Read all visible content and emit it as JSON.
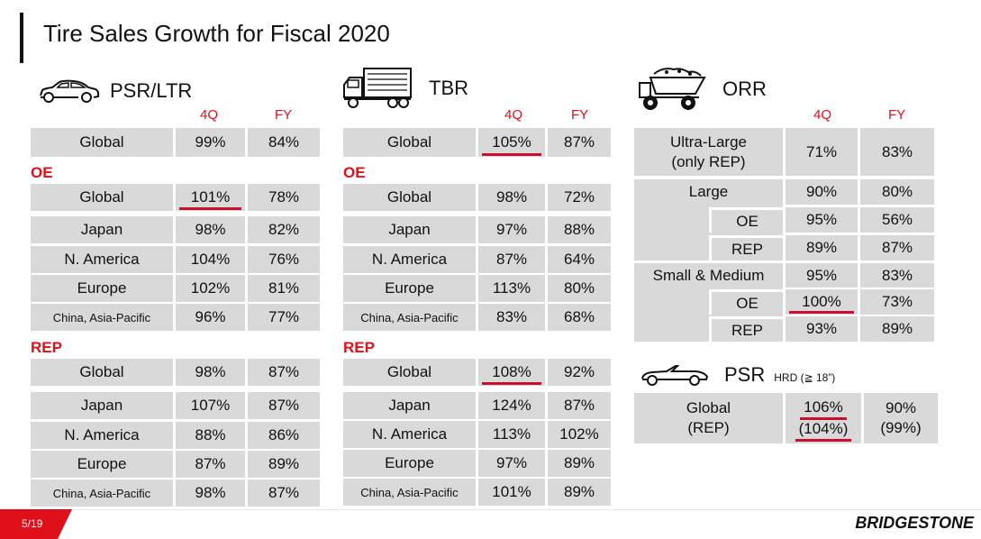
{
  "title": "Tire Sales Growth for Fiscal 2020",
  "colors": {
    "accent": "#e0101a",
    "cell": "#d9d9d9",
    "underline": "#c8102e"
  },
  "psr": {
    "label": "PSR/LTR",
    "col_4q": "4Q",
    "col_fy": "FY",
    "global": {
      "label": "Global",
      "q4": "99%",
      "fy": "84%"
    },
    "oe_label": "OE",
    "oe": [
      {
        "label": "Global",
        "q4": "101%",
        "fy": "78%"
      },
      {
        "label": "Japan",
        "q4": "98%",
        "fy": "82%"
      },
      {
        "label": "N. America",
        "q4": "104%",
        "fy": "76%"
      },
      {
        "label": "Europe",
        "q4": "102%",
        "fy": "81%"
      },
      {
        "label": "China, Asia-Pacific",
        "q4": "96%",
        "fy": "77%"
      }
    ],
    "rep_label": "REP",
    "rep": [
      {
        "label": "Global",
        "q4": "98%",
        "fy": "87%"
      },
      {
        "label": "Japan",
        "q4": "107%",
        "fy": "87%"
      },
      {
        "label": "N. America",
        "q4": "88%",
        "fy": "86%"
      },
      {
        "label": "Europe",
        "q4": "87%",
        "fy": "89%"
      },
      {
        "label": "China, Asia-Pacific",
        "q4": "98%",
        "fy": "87%"
      }
    ]
  },
  "tbr": {
    "label": "TBR",
    "col_4q": "4Q",
    "col_fy": "FY",
    "global": {
      "label": "Global",
      "q4": "105%",
      "fy": "87%"
    },
    "oe_label": "OE",
    "oe": [
      {
        "label": "Global",
        "q4": "98%",
        "fy": "72%"
      },
      {
        "label": "Japan",
        "q4": "97%",
        "fy": "88%"
      },
      {
        "label": "N. America",
        "q4": "87%",
        "fy": "64%"
      },
      {
        "label": "Europe",
        "q4": "113%",
        "fy": "80%"
      },
      {
        "label": "China, Asia-Pacific",
        "q4": "83%",
        "fy": "68%"
      }
    ],
    "rep_label": "REP",
    "rep": [
      {
        "label": "Global",
        "q4": "108%",
        "fy": "92%"
      },
      {
        "label": "Japan",
        "q4": "124%",
        "fy": "87%"
      },
      {
        "label": "N. America",
        "q4": "113%",
        "fy": "102%"
      },
      {
        "label": "Europe",
        "q4": "97%",
        "fy": "89%"
      },
      {
        "label": "China, Asia-Pacific",
        "q4": "101%",
        "fy": "89%"
      }
    ]
  },
  "orr": {
    "label": "ORR",
    "col_4q": "4Q",
    "col_fy": "FY",
    "ultra": {
      "label_1": "Ultra-Large",
      "label_2": "(only REP)",
      "q4": "71%",
      "fy": "83%"
    },
    "large": {
      "label": "Large",
      "q4": "90%",
      "fy": "80%"
    },
    "large_oe": {
      "label": "OE",
      "q4": "95%",
      "fy": "56%"
    },
    "large_rep": {
      "label": "REP",
      "q4": "89%",
      "fy": "87%"
    },
    "small": {
      "label": "Small & Medium",
      "q4": "95%",
      "fy": "83%"
    },
    "small_oe": {
      "label": "OE",
      "q4": "100%",
      "fy": "73%"
    },
    "small_rep": {
      "label": "REP",
      "q4": "93%",
      "fy": "89%"
    }
  },
  "psr_hrd": {
    "label": "PSR",
    "sublabel": "HRD (≧ 18”)",
    "row_label_1": "Global",
    "row_label_2": "(REP)",
    "q4_1": "106%",
    "q4_2": "(104%)",
    "fy_1": "90%",
    "fy_2": "(99%)"
  },
  "footer": {
    "page": "5/19",
    "brand": "BRIDGESTONE"
  },
  "icons": [
    "car-icon",
    "truck-icon",
    "dump-truck-icon",
    "convertible-car-icon"
  ]
}
